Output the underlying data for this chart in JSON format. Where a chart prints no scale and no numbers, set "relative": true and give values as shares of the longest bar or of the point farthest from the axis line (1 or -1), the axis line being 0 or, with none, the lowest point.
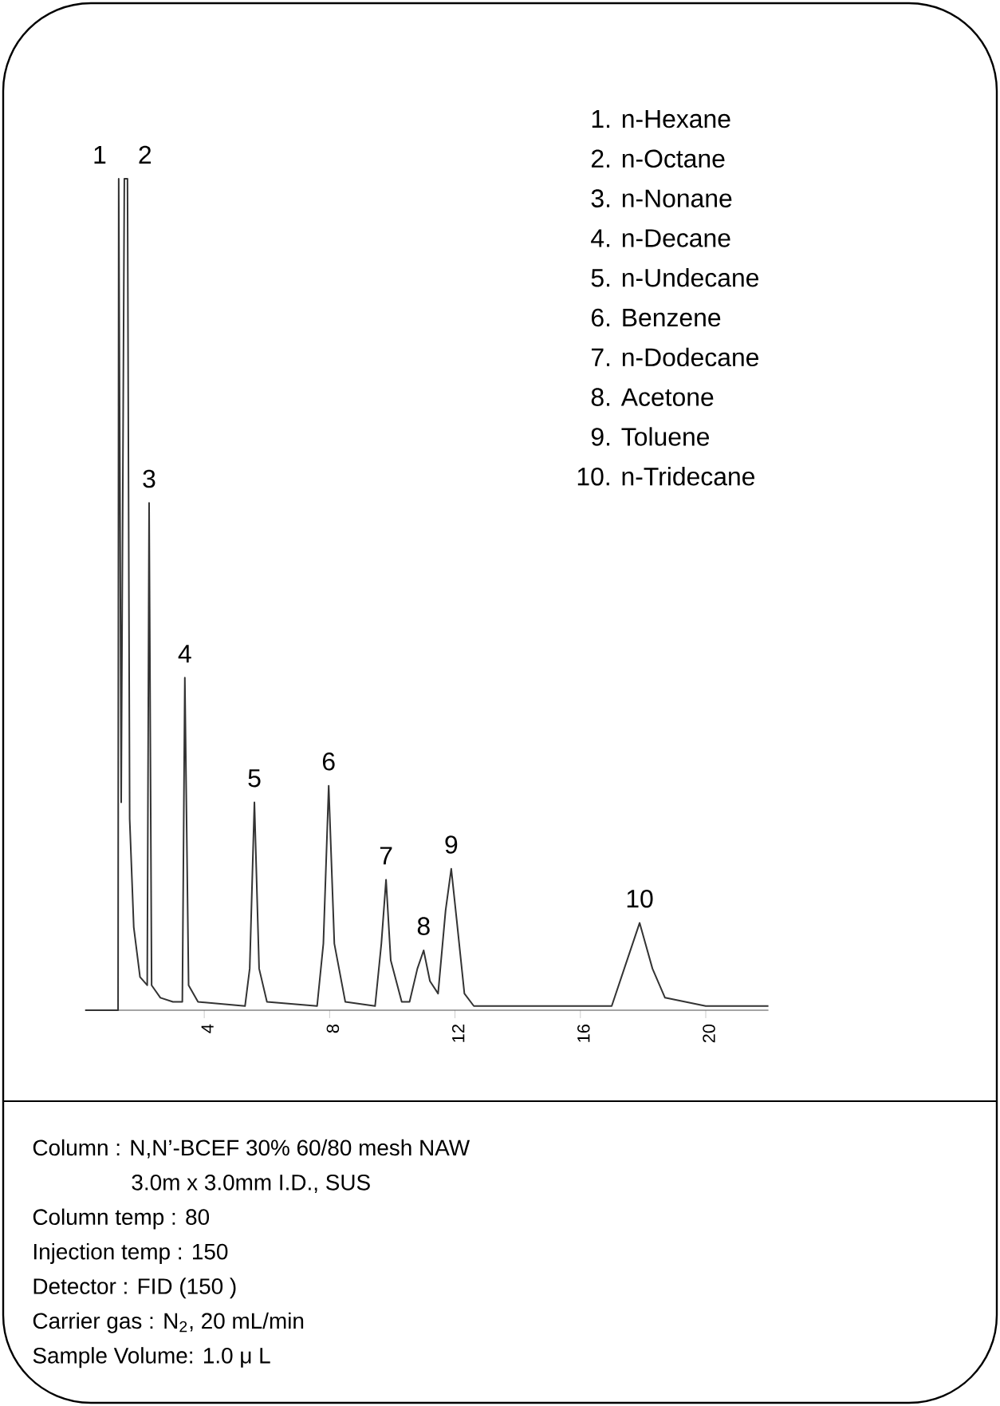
{
  "chart_data": {
    "type": "line",
    "relative": true,
    "color": "#333333",
    "x": [
      0.2,
      1.25,
      1.27,
      1.35,
      1.45,
      1.55,
      1.62,
      1.75,
      1.95,
      2.18,
      2.24,
      2.32,
      2.6,
      3.0,
      3.3,
      3.38,
      3.5,
      3.8,
      5.3,
      5.45,
      5.6,
      5.75,
      6.0,
      7.6,
      7.8,
      7.97,
      8.15,
      8.5,
      9.45,
      9.65,
      9.8,
      9.95,
      10.3,
      10.55,
      10.8,
      11.0,
      11.2,
      11.46,
      11.7,
      11.88,
      12.05,
      12.3,
      12.6,
      17.0,
      17.4,
      17.89,
      18.3,
      18.7,
      20.0,
      22.0
    ],
    "values": [
      0,
      0,
      1,
      0.25,
      1,
      1,
      0.23,
      0.1,
      0.04,
      0.03,
      0.61,
      0.03,
      0.015,
      0.01,
      0.01,
      0.4,
      0.03,
      0.01,
      0.005,
      0.05,
      0.25,
      0.05,
      0.01,
      0.005,
      0.08,
      0.27,
      0.08,
      0.01,
      0.005,
      0.08,
      0.157,
      0.06,
      0.01,
      0.01,
      0.05,
      0.072,
      0.035,
      0.02,
      0.12,
      0.17,
      0.11,
      0.02,
      0.005,
      0.005,
      0.05,
      0.105,
      0.05,
      0.015,
      0.005,
      0.005
    ],
    "xlim": [
      0.2,
      22
    ],
    "xticks": [
      4,
      8,
      12,
      16,
      20
    ],
    "annotations": [
      {
        "text": "1",
        "x": 1.27,
        "y": 1
      },
      {
        "text": "2",
        "x": 1.5,
        "y": 1
      },
      {
        "text": "3",
        "x": 2.24,
        "y": 0.61
      },
      {
        "text": "4",
        "x": 3.38,
        "y": 0.4
      },
      {
        "text": "5",
        "x": 5.6,
        "y": 0.25
      },
      {
        "text": "6",
        "x": 7.97,
        "y": 0.27
      },
      {
        "text": "7",
        "x": 9.8,
        "y": 0.157
      },
      {
        "text": "8",
        "x": 11.0,
        "y": 0.072
      },
      {
        "text": "9",
        "x": 11.88,
        "y": 0.17
      },
      {
        "text": "10",
        "x": 17.89,
        "y": 0.105
      },
      "1. n-Hexane",
      "2. n-Octane",
      "3. n-Nonane",
      "4. n-Decane",
      "5. n-Undecane",
      "6. Benzene",
      "7. n-Dodecane",
      "8. Acetone",
      "9. Toluene",
      "10. n-Tridecane",
      "Column : N,N’-BCEF 30% 60/80 mesh NAW",
      "3.0m x 3.0mm I.D., SUS",
      "Column temp : 80",
      "Injection temp : 150",
      "Detector : FID (150    )",
      "Carrier gas : N$_{2}$, 20 mL/min",
      "Sample Volume: 1.0 μ L"
    ]
  }
}
